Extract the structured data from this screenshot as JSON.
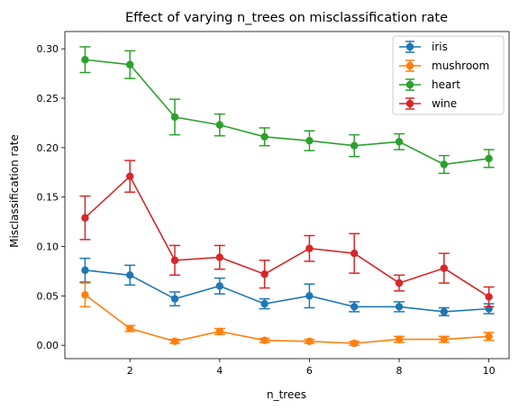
{
  "chart_data": {
    "type": "line",
    "title": "Effect of varying n_trees on misclassification rate",
    "xlabel": "n_trees",
    "ylabel": "Misclassification rate",
    "xlim": [
      0.55,
      10.45
    ],
    "ylim": [
      -0.0135,
      0.3175
    ],
    "xticks": [
      2,
      4,
      6,
      8,
      10
    ],
    "yticks": [
      0.0,
      0.05,
      0.1,
      0.15,
      0.2,
      0.25,
      0.3
    ],
    "ytick_labels": [
      "0.00",
      "0.05",
      "0.10",
      "0.15",
      "0.20",
      "0.25",
      "0.30"
    ],
    "grid": false,
    "legend_position": "top-right",
    "x": [
      1,
      2,
      3,
      4,
      5,
      6,
      7,
      8,
      9,
      10
    ],
    "series": [
      {
        "name": "iris",
        "color": "#1f77b4",
        "values": [
          0.076,
          0.071,
          0.047,
          0.06,
          0.042,
          0.05,
          0.039,
          0.039,
          0.034,
          0.037
        ],
        "error": [
          0.012,
          0.01,
          0.007,
          0.008,
          0.005,
          0.012,
          0.005,
          0.005,
          0.004,
          0.005
        ]
      },
      {
        "name": "mushroom",
        "color": "#ff7f0e",
        "values": [
          0.051,
          0.017,
          0.004,
          0.014,
          0.005,
          0.004,
          0.002,
          0.006,
          0.006,
          0.009
        ],
        "error": [
          0.012,
          0.003,
          0.002,
          0.003,
          0.002,
          0.002,
          0.002,
          0.003,
          0.003,
          0.004
        ]
      },
      {
        "name": "heart",
        "color": "#2ca02c",
        "values": [
          0.289,
          0.284,
          0.231,
          0.223,
          0.211,
          0.207,
          0.202,
          0.206,
          0.183,
          0.189
        ],
        "error": [
          0.013,
          0.014,
          0.018,
          0.011,
          0.009,
          0.01,
          0.011,
          0.008,
          0.009,
          0.009
        ]
      },
      {
        "name": "wine",
        "color": "#d62728",
        "values": [
          0.129,
          0.171,
          0.086,
          0.089,
          0.072,
          0.098,
          0.093,
          0.063,
          0.078,
          0.049
        ],
        "error": [
          0.022,
          0.016,
          0.015,
          0.012,
          0.014,
          0.013,
          0.02,
          0.008,
          0.015,
          0.01
        ]
      }
    ]
  }
}
